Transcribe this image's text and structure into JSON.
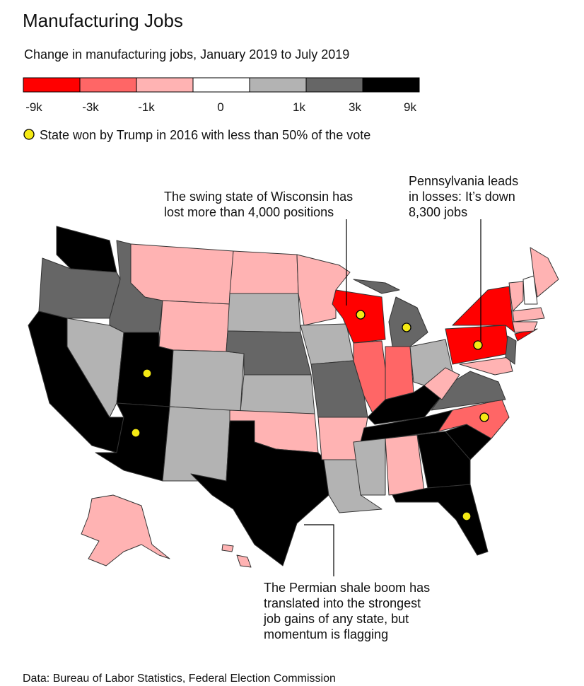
{
  "header": {
    "title": "Manufacturing Jobs",
    "subtitle": "Change in manufacturing jobs, January 2019 to July 2019"
  },
  "legend": {
    "colors": [
      "#ff0000",
      "#ff6666",
      "#ffb3b3",
      "#ffffff",
      "#b3b3b3",
      "#666666",
      "#000000"
    ],
    "labels": [
      "-9k",
      "-3k",
      "-1k",
      "0",
      "1k",
      "3k",
      "9k"
    ]
  },
  "marker_note": "State won by Trump in 2016 with less than 50% of the vote",
  "annotations": [
    {
      "lines": [
        "The swing state of Wisconsin has",
        "lost more than 4,000 positions"
      ]
    },
    {
      "lines": [
        "Pennsylvania leads",
        "in losses: It’s down",
        "8,300 jobs"
      ]
    },
    {
      "lines": [
        "The Permian shale boom has",
        "translated into the strongest",
        "job gains of any state, but",
        "momentum is flagging"
      ]
    }
  ],
  "source": "Data: Bureau of Labor Statistics, Federal Election Commission"
}
